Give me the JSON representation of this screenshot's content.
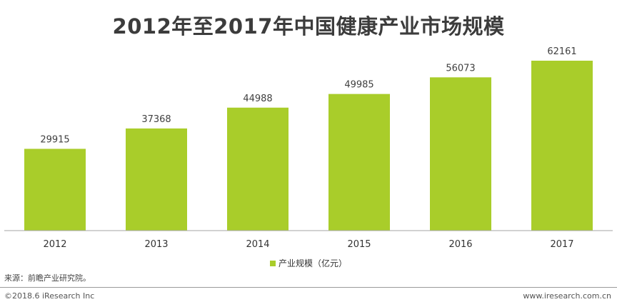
{
  "chart_data": {
    "type": "bar",
    "title": "2012年至2017年中国健康产业市场规模",
    "categories": [
      "2012",
      "2013",
      "2014",
      "2015",
      "2016",
      "2017"
    ],
    "series": [
      {
        "name": "产业规模（亿元）",
        "values": [
          29915,
          37368,
          44988,
          49985,
          56073,
          62161
        ]
      }
    ],
    "xlabel": "",
    "ylabel": "",
    "ylim": [
      0,
      70000
    ],
    "grid": false,
    "legend_position": "bottom",
    "bar_color": "#a9cd2a",
    "value_label_color": "#404040"
  },
  "source": "来源：前瞻产业研究院。",
  "footer": {
    "copyright": "©2018.6 iResearch Inc",
    "website": "www.iresearch.com.cn"
  }
}
